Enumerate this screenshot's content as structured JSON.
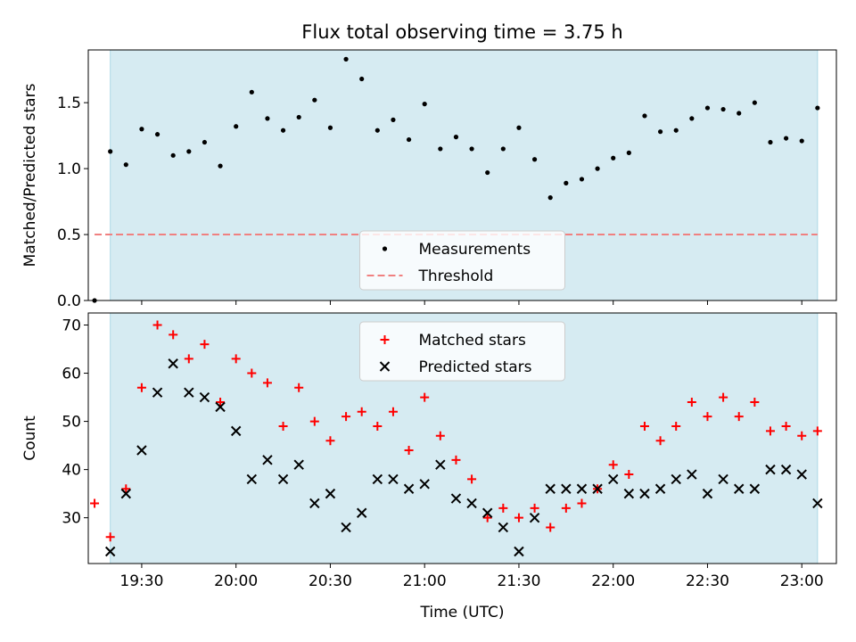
{
  "chart_data": [
    {
      "type": "scatter",
      "title": "Flux total observing time = 3.75 h",
      "xlabel": "",
      "ylabel": "Matched/Predicted stars",
      "xlim": [
        "19:13",
        "23:11"
      ],
      "ylim": [
        0,
        1.9
      ],
      "yticks": [
        0.0,
        0.5,
        1.0,
        1.5
      ],
      "ytick_labels": [
        "0.0",
        "0.5",
        "1.0",
        "1.5"
      ],
      "shaded_span": [
        "19:20",
        "23:05"
      ],
      "shade_color": "#add8e6",
      "legend_location": "lower center",
      "legend": [
        "Measurements",
        "Threshold"
      ],
      "series": [
        {
          "name": "Measurements",
          "marker": "dot",
          "color": "#000000",
          "x": [
            "19:15",
            "19:20",
            "19:25",
            "19:30",
            "19:35",
            "19:40",
            "19:45",
            "19:50",
            "19:55",
            "20:00",
            "20:05",
            "20:10",
            "20:15",
            "20:20",
            "20:25",
            "20:30",
            "20:35",
            "20:40",
            "20:45",
            "20:50",
            "20:55",
            "21:00",
            "21:05",
            "21:10",
            "21:15",
            "21:20",
            "21:25",
            "21:30",
            "21:35",
            "21:40",
            "21:45",
            "21:50",
            "21:55",
            "22:00",
            "22:05",
            "22:10",
            "22:15",
            "22:20",
            "22:25",
            "22:30",
            "22:35",
            "22:40",
            "22:45",
            "22:50",
            "22:55",
            "23:00",
            "23:05"
          ],
          "y": [
            0.0,
            1.13,
            1.03,
            1.3,
            1.26,
            1.1,
            1.13,
            1.2,
            1.02,
            1.32,
            1.58,
            1.38,
            1.29,
            1.39,
            1.52,
            1.31,
            1.83,
            1.68,
            1.29,
            1.37,
            1.22,
            1.49,
            1.15,
            1.24,
            1.15,
            0.97,
            1.15,
            1.31,
            1.07,
            0.78,
            0.89,
            0.92,
            1.0,
            1.08,
            1.12,
            1.4,
            1.28,
            1.29,
            1.38,
            1.46,
            1.45,
            1.42,
            1.5,
            1.2,
            1.23,
            1.21,
            1.46
          ]
        },
        {
          "name": "Threshold",
          "style": "dashed",
          "color": "#f08080",
          "x": [
            "19:15",
            "23:05"
          ],
          "y": [
            0.5,
            0.5
          ]
        }
      ]
    },
    {
      "type": "scatter",
      "title": "",
      "xlabel": "Time (UTC)",
      "ylabel": "Count",
      "xlim": [
        "19:13",
        "23:11"
      ],
      "ylim": [
        20.5,
        72.5
      ],
      "yticks": [
        30,
        40,
        50,
        60,
        70
      ],
      "ytick_labels": [
        "30",
        "40",
        "50",
        "60",
        "70"
      ],
      "xticks": [
        "19:30",
        "20:00",
        "20:30",
        "21:00",
        "21:30",
        "22:00",
        "22:30",
        "23:00"
      ],
      "xtick_labels": [
        "19:30",
        "20:00",
        "20:30",
        "21:00",
        "21:30",
        "22:00",
        "22:30",
        "23:00"
      ],
      "shaded_span": [
        "19:20",
        "23:05"
      ],
      "shade_color": "#add8e6",
      "legend_location": "upper center",
      "legend": [
        "Matched stars",
        "Predicted stars"
      ],
      "series": [
        {
          "name": "Matched stars",
          "marker": "plus",
          "color": "#ff0000",
          "x": [
            "19:15",
            "19:20",
            "19:25",
            "19:30",
            "19:35",
            "19:40",
            "19:45",
            "19:50",
            "19:55",
            "20:00",
            "20:05",
            "20:10",
            "20:15",
            "20:20",
            "20:25",
            "20:30",
            "20:35",
            "20:40",
            "20:45",
            "20:50",
            "20:55",
            "21:00",
            "21:05",
            "21:10",
            "21:15",
            "21:20",
            "21:25",
            "21:30",
            "21:35",
            "21:40",
            "21:45",
            "21:50",
            "21:55",
            "22:00",
            "22:05",
            "22:10",
            "22:15",
            "22:20",
            "22:25",
            "22:30",
            "22:35",
            "22:40",
            "22:45",
            "22:50",
            "22:55",
            "23:00",
            "23:05"
          ],
          "y": [
            33,
            26,
            36,
            57,
            70,
            68,
            63,
            66,
            54,
            63,
            60,
            58,
            49,
            57,
            50,
            46,
            51,
            52,
            49,
            52,
            44,
            55,
            47,
            42,
            38,
            30,
            32,
            30,
            32,
            28,
            32,
            33,
            36,
            41,
            39,
            49,
            46,
            49,
            54,
            51,
            55,
            51,
            54,
            48,
            49,
            47,
            48
          ]
        },
        {
          "name": "Predicted stars",
          "marker": "x",
          "color": "#000000",
          "x": [
            "19:20",
            "19:25",
            "19:30",
            "19:35",
            "19:40",
            "19:45",
            "19:50",
            "19:55",
            "20:00",
            "20:05",
            "20:10",
            "20:15",
            "20:20",
            "20:25",
            "20:30",
            "20:35",
            "20:40",
            "20:45",
            "20:50",
            "20:55",
            "21:00",
            "21:05",
            "21:10",
            "21:15",
            "21:20",
            "21:25",
            "21:30",
            "21:35",
            "21:40",
            "21:45",
            "21:50",
            "21:55",
            "22:00",
            "22:05",
            "22:10",
            "22:15",
            "22:20",
            "22:25",
            "22:30",
            "22:35",
            "22:40",
            "22:45",
            "22:50",
            "22:55",
            "23:00",
            "23:05"
          ],
          "y": [
            23,
            35,
            44,
            56,
            62,
            56,
            55,
            53,
            48,
            38,
            42,
            38,
            41,
            33,
            35,
            28,
            31,
            38,
            38,
            36,
            37,
            41,
            34,
            33,
            31,
            28,
            23,
            30,
            36,
            36,
            36,
            36,
            38,
            35,
            35,
            36,
            38,
            39,
            35,
            38,
            36,
            36,
            40,
            40,
            39,
            33
          ]
        }
      ]
    }
  ]
}
